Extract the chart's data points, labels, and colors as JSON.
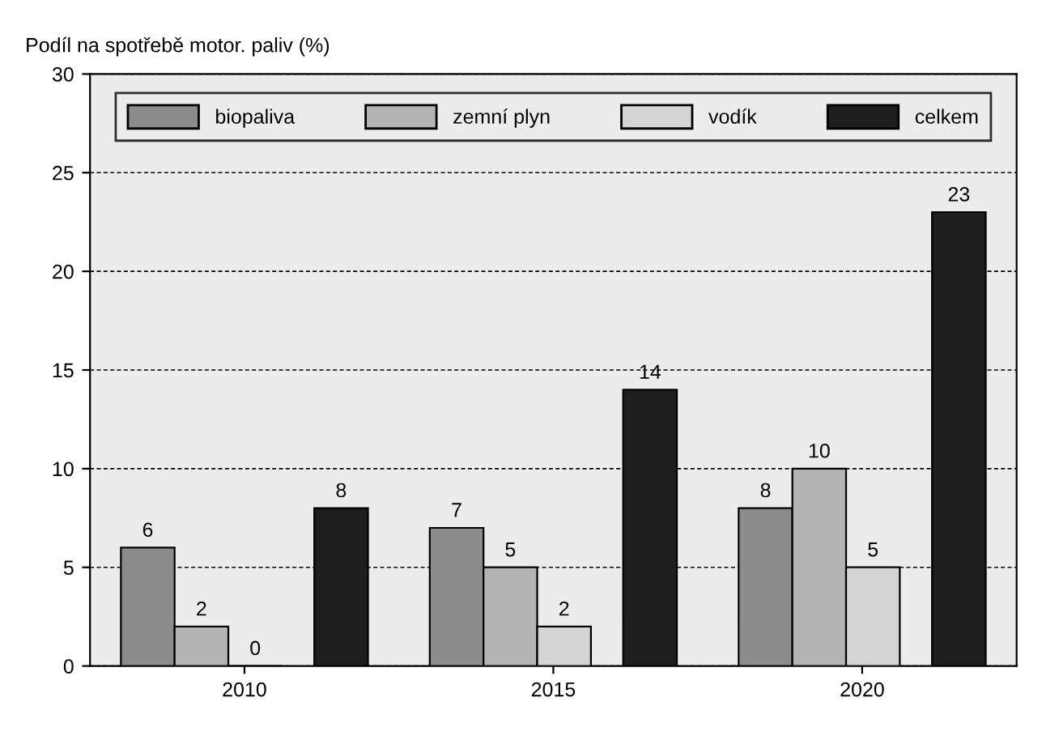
{
  "chart_data": {
    "type": "bar",
    "ylabel": "Podíl na spotřebě motor. paliv (%)",
    "categories": [
      "2010",
      "2015",
      "2020"
    ],
    "series": [
      {
        "name": "biopaliva",
        "color": "#8c8c8c",
        "values": [
          6,
          7,
          8
        ]
      },
      {
        "name": "zemní plyn",
        "color": "#b4b4b4",
        "values": [
          2,
          5,
          10
        ]
      },
      {
        "name": "vodík",
        "color": "#d4d4d4",
        "values": [
          0,
          2,
          5
        ]
      },
      {
        "name": "celkem",
        "color": "#1e1e1e",
        "values": [
          8,
          14,
          23
        ]
      }
    ],
    "ylim": [
      0,
      30
    ],
    "yticks": [
      0,
      5,
      10,
      15,
      20,
      25,
      30
    ],
    "grid": "y",
    "legend": "top",
    "data_labels": true
  }
}
